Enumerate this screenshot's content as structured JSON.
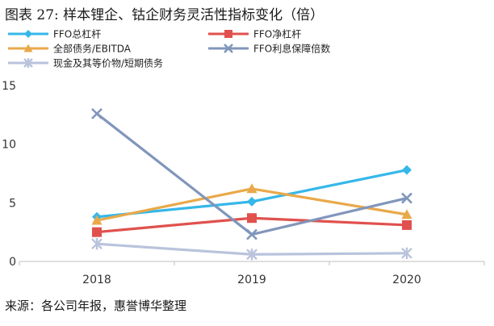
{
  "title": "图表 27: 样本锂企、钴企财务灵活性指标变化（倍）",
  "source": "来源：各公司年报，惠誉博华整理",
  "chart_data": {
    "type": "line",
    "title": "图表 27: 样本锂企、钴企财务灵活性指标变化（倍）",
    "xlabel": "",
    "ylabel": "",
    "categories": [
      "2018",
      "2019",
      "2020"
    ],
    "ylim": [
      0,
      15
    ],
    "yticks": [
      0,
      5,
      10,
      15
    ],
    "grid": false,
    "legend_position": "top-left",
    "series": [
      {
        "name": "FFO总杠杆",
        "color": "#35b7ea",
        "marker": "diamond",
        "values": [
          3.8,
          5.1,
          7.8
        ]
      },
      {
        "name": "FFO净杠杆",
        "color": "#e0514e",
        "marker": "square",
        "values": [
          2.5,
          3.7,
          3.1
        ]
      },
      {
        "name": "全部债务/EBITDA",
        "color": "#e9a94a",
        "marker": "triangle",
        "values": [
          3.5,
          6.2,
          4.0
        ]
      },
      {
        "name": "FFO利息保障倍数",
        "color": "#8196bb",
        "marker": "x",
        "values": [
          12.6,
          2.3,
          5.4
        ]
      },
      {
        "name": "现金及其等价物/短期债务",
        "color": "#b9c3dc",
        "marker": "star",
        "values": [
          1.5,
          0.6,
          0.7
        ]
      }
    ]
  }
}
